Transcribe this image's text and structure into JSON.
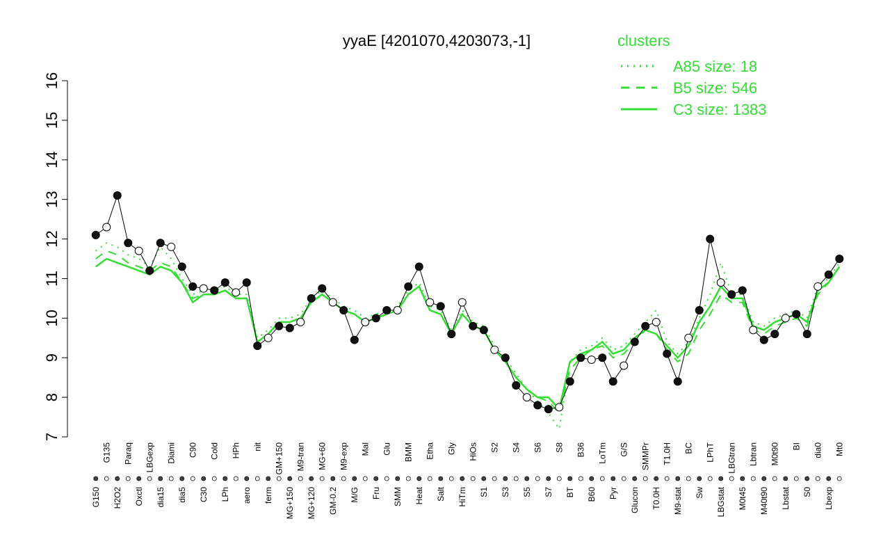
{
  "chart_data": {
    "type": "line",
    "title": "yyaE [4201070,4203073,-1]",
    "legend_title": "clusters",
    "legend_position": "top-right",
    "categories": [
      "G150",
      "G135",
      "H2O2",
      "Paraq",
      "Oxctl",
      "LBGexp",
      "dia15",
      "Diami",
      "dia5",
      "C90",
      "C30",
      "Cold",
      "LPh",
      "HPh",
      "aero",
      "nit",
      "ferm",
      "GM+150",
      "MG+150",
      "M9-tran",
      "MG+120",
      "MG+60",
      "GM-0.2",
      "M9-exp",
      "M/G",
      "Mal",
      "Fru",
      "Glu",
      "SMM",
      "BMM",
      "Heat",
      "Etha",
      "Salt",
      "Gly",
      "HiTm",
      "HiOs",
      "S1",
      "S2",
      "S3",
      "S4",
      "S5",
      "S6",
      "S7",
      "S8",
      "BT",
      "B36",
      "B60",
      "LoTm",
      "Pyr",
      "G/S",
      "Glucon",
      "SMMPr",
      "T0.0H",
      "T1.0H",
      "M9-stat",
      "BC",
      "Sw",
      "LPhT",
      "LBGstat",
      "LBGtran",
      "M0t45",
      "Lbtran",
      "M40t90",
      "M0t90",
      "Lbstat",
      "BI",
      "S0",
      "dia0",
      "Lbexp",
      "Mt0"
    ],
    "values": [
      12.1,
      12.3,
      13.1,
      11.9,
      11.7,
      11.2,
      11.9,
      11.8,
      11.3,
      10.8,
      10.75,
      10.7,
      10.9,
      10.65,
      10.9,
      9.3,
      9.5,
      9.8,
      9.75,
      9.9,
      10.5,
      10.75,
      10.4,
      10.2,
      9.45,
      9.9,
      10.0,
      10.2,
      10.2,
      10.8,
      11.3,
      10.4,
      10.3,
      9.6,
      10.4,
      9.8,
      9.7,
      9.2,
      9.0,
      8.3,
      8.0,
      7.8,
      7.7,
      7.75,
      8.4,
      9.0,
      8.95,
      9.0,
      8.4,
      8.8,
      9.4,
      9.8,
      9.9,
      9.1,
      8.4,
      9.5,
      10.2,
      12.0,
      10.9,
      10.6,
      10.7,
      9.7,
      9.45,
      9.6,
      10.0,
      10.1,
      9.6,
      10.8,
      11.1,
      11.5
    ],
    "series": [
      {
        "name": "A85 size: 18",
        "color": "#33dd33",
        "dash": "dotted",
        "values": [
          11.7,
          11.9,
          11.8,
          11.6,
          11.5,
          11.3,
          11.8,
          11.5,
          11.0,
          10.6,
          10.7,
          10.7,
          10.8,
          10.6,
          10.6,
          9.5,
          9.7,
          10.0,
          10.0,
          10.1,
          10.5,
          10.7,
          10.5,
          10.3,
          10.2,
          10.0,
          10.1,
          10.2,
          10.3,
          10.7,
          10.9,
          10.3,
          10.2,
          9.7,
          10.2,
          9.9,
          9.8,
          9.3,
          9.0,
          8.6,
          8.2,
          7.9,
          7.6,
          7.2,
          8.9,
          9.2,
          9.3,
          9.5,
          9.2,
          9.3,
          9.6,
          9.9,
          10.2,
          9.4,
          9.1,
          9.4,
          10.0,
          10.6,
          11.4,
          10.6,
          10.6,
          9.9,
          9.8,
          10.0,
          10.1,
          10.2,
          10.0,
          10.8,
          11.0,
          11.4
        ]
      },
      {
        "name": "B5 size: 546",
        "color": "#33dd33",
        "dash": "dashed",
        "values": [
          11.5,
          11.7,
          11.6,
          11.4,
          11.3,
          11.2,
          11.4,
          11.3,
          10.9,
          10.5,
          10.6,
          10.6,
          10.7,
          10.5,
          10.5,
          9.4,
          9.6,
          9.9,
          9.9,
          10.0,
          10.4,
          10.6,
          10.4,
          10.2,
          10.1,
          9.9,
          10.0,
          10.1,
          10.2,
          10.6,
          10.8,
          10.2,
          10.1,
          9.6,
          10.1,
          9.8,
          9.7,
          9.2,
          8.9,
          8.5,
          8.2,
          8.0,
          7.9,
          7.6,
          8.7,
          9.0,
          9.2,
          9.3,
          9.0,
          9.1,
          9.4,
          9.7,
          9.6,
          9.2,
          8.9,
          9.1,
          9.7,
          10.1,
          10.6,
          10.4,
          10.4,
          9.7,
          9.6,
          9.8,
          9.9,
          10.0,
          9.8,
          10.6,
          10.9,
          11.3
        ]
      },
      {
        "name": "C3 size: 1383",
        "color": "#33dd33",
        "dash": "solid",
        "values": [
          11.3,
          11.5,
          11.4,
          11.3,
          11.2,
          11.1,
          11.3,
          11.2,
          10.9,
          10.4,
          10.6,
          10.6,
          10.7,
          10.5,
          10.5,
          9.4,
          9.6,
          9.9,
          9.9,
          10.0,
          10.4,
          10.6,
          10.4,
          10.2,
          10.1,
          9.9,
          10.0,
          10.1,
          10.2,
          10.6,
          10.8,
          10.2,
          10.1,
          9.6,
          10.1,
          9.8,
          9.7,
          9.2,
          8.9,
          8.5,
          8.2,
          8.0,
          8.0,
          7.7,
          8.9,
          9.1,
          9.2,
          9.4,
          9.1,
          9.2,
          9.5,
          9.7,
          9.6,
          9.3,
          9.0,
          9.3,
          9.9,
          10.3,
          10.8,
          10.5,
          10.5,
          9.8,
          9.7,
          9.9,
          10.0,
          10.1,
          9.9,
          10.7,
          10.9,
          11.3
        ]
      }
    ],
    "ylim": [
      7,
      16
    ],
    "yticks": [
      7,
      8,
      9,
      10,
      11,
      12,
      13,
      14,
      15,
      16
    ]
  }
}
